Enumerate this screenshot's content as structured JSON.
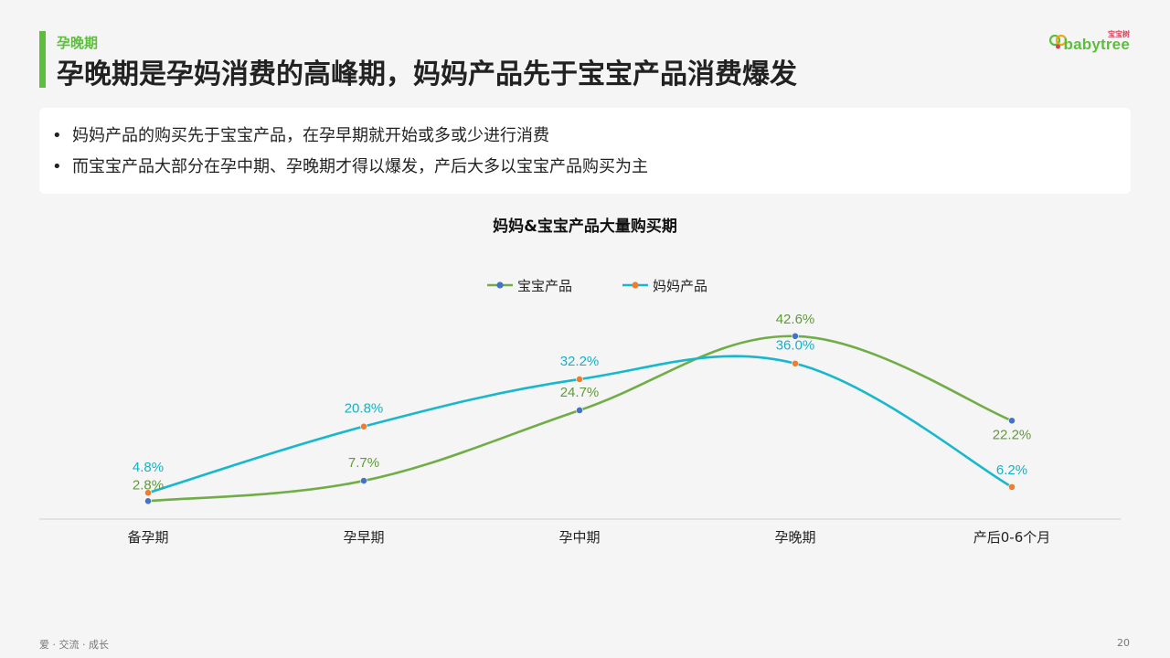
{
  "header": {
    "section": "孕晚期",
    "title": "孕晚期是孕妈消费的高峰期，妈妈产品先于宝宝产品消费爆发",
    "logo_sub": "宝宝树",
    "logo_word": "babytree"
  },
  "bullets": [
    "妈妈产品的购买先于宝宝产品，在孕早期就开始或多或少进行消费",
    "而宝宝产品大部分在孕中期、孕晚期才得以爆发，产后大多以宝宝产品购买为主"
  ],
  "bullet_symbol": "•",
  "chart_data": {
    "type": "line",
    "title": "妈妈&宝宝产品大量购买期",
    "categories": [
      "备孕期",
      "孕早期",
      "孕中期",
      "孕晚期",
      "产后0-6个月"
    ],
    "series": [
      {
        "name": "宝宝产品",
        "values": [
          2.8,
          7.7,
          24.7,
          42.6,
          22.2
        ],
        "labels": [
          "2.8%",
          "7.7%",
          "24.7%",
          "42.6%",
          "22.2%"
        ],
        "color": "#70ad47",
        "marker_color": "#4472c4"
      },
      {
        "name": "妈妈产品",
        "values": [
          4.8,
          20.8,
          32.2,
          36.0,
          6.2
        ],
        "labels": [
          "4.8%",
          "20.8%",
          "32.2%",
          "36.0%",
          "6.2%"
        ],
        "color": "#17b8cc",
        "marker_color": "#ed7d31"
      }
    ],
    "legend_position": "top-center",
    "smooth": true,
    "grid": false,
    "ylim": [
      0,
      50
    ]
  },
  "footer": {
    "tagline": "爱 · 交流 · 成长",
    "page_number": "20"
  }
}
